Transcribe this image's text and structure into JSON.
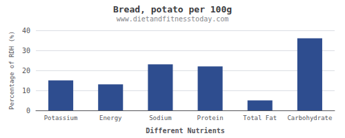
{
  "chart_data": {
    "type": "bar",
    "title": "Bread, potato per 100g",
    "subtitle": "www.dietandfitnesstoday.com",
    "xlabel": "Different Nutrients",
    "ylabel": "Percentage of RDH (%)",
    "categories": [
      "Potassium",
      "Energy",
      "Sodium",
      "Protein",
      "Total Fat",
      "Carbohydrate"
    ],
    "values": [
      15,
      13,
      23,
      22,
      5,
      36
    ],
    "color": "#2e4d8f",
    "ylim": [
      0,
      40
    ],
    "yticks": [
      0,
      10,
      20,
      30,
      40
    ],
    "grid": true
  }
}
